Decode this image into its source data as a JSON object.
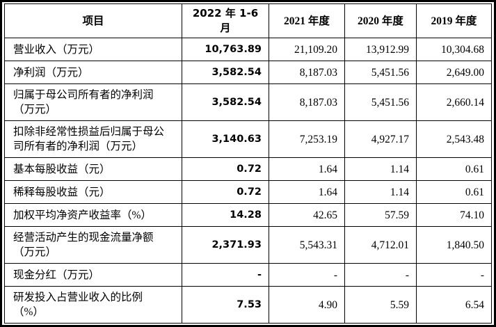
{
  "colors": {
    "border": "#000000",
    "text": "#000000",
    "background": "#ffffff"
  },
  "table": {
    "columns": [
      "项目",
      "2022 年 1-6\n月",
      "2021 年度",
      "2020 年度",
      "2019 年度"
    ],
    "rows": [
      {
        "label": "营业收入（万元）",
        "values": [
          "10,763.89",
          "21,109.20",
          "13,912.99",
          "10,304.68"
        ],
        "lines": 1
      },
      {
        "label": "净利润（万元）",
        "values": [
          "3,582.54",
          "8,187.03",
          "5,451.56",
          "2,649.00"
        ],
        "lines": 1
      },
      {
        "label": "归属于母公司所有者的净利润\n（万元）",
        "values": [
          "3,582.54",
          "8,187.03",
          "5,451.56",
          "2,660.14"
        ],
        "lines": 2
      },
      {
        "label": "扣除非经常性损益后归属于母公\n司所有者的净利润（万元）",
        "values": [
          "3,140.63",
          "7,253.19",
          "4,927.17",
          "2,543.48"
        ],
        "lines": 2
      },
      {
        "label": "基本每股收益（元）",
        "values": [
          "0.72",
          "1.64",
          "1.14",
          "0.61"
        ],
        "lines": 1
      },
      {
        "label": "稀释每股收益（元）",
        "values": [
          "0.72",
          "1.64",
          "1.14",
          "0.61"
        ],
        "lines": 1
      },
      {
        "label": "加权平均净资产收益率（%）",
        "values": [
          "14.28",
          "42.65",
          "57.59",
          "74.10"
        ],
        "lines": 1
      },
      {
        "label": "经营活动产生的现金流量净额\n（万元）",
        "values": [
          "2,371.93",
          "5,543.31",
          "4,712.01",
          "1,840.50"
        ],
        "lines": 2
      },
      {
        "label": "现金分红（万元）",
        "values": [
          "-",
          "-",
          "-",
          "-"
        ],
        "lines": 1
      },
      {
        "label": "研发投入占营业收入的比例\n（%）",
        "values": [
          "7.53",
          "4.90",
          "5.59",
          "6.54"
        ],
        "lines": 2
      }
    ]
  }
}
